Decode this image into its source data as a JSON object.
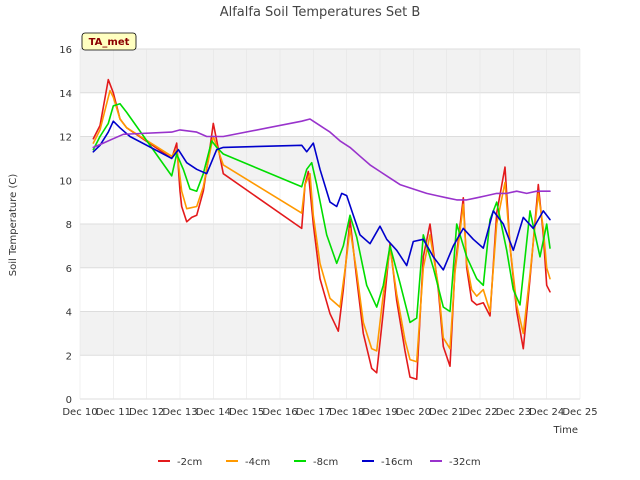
{
  "chart_data": {
    "type": "line",
    "title": "Alfalfa Soil Temperatures Set B",
    "xlabel": "Time",
    "ylabel": "Soil Temperature (C)",
    "station_label": "TA_met",
    "xlim": [
      10,
      25
    ],
    "ylim": [
      0,
      16
    ],
    "x_ticks": [
      10,
      11,
      12,
      13,
      14,
      15,
      16,
      17,
      18,
      19,
      20,
      21,
      22,
      23,
      24,
      25
    ],
    "x_tick_labels": [
      "Dec 10",
      "Dec 11",
      "Dec 12",
      "Dec 13",
      "Dec 14",
      "Dec 15",
      "Dec 16",
      "Dec 17",
      "Dec 18",
      "Dec 19",
      "Dec 20",
      "Dec 21",
      "Dec 22",
      "Dec 23",
      "Dec 24",
      "Dec 25"
    ],
    "y_ticks": [
      0,
      2,
      4,
      6,
      8,
      10,
      12,
      14,
      16
    ],
    "y_tick_labels": [
      "0",
      "2",
      "4",
      "6",
      "8",
      "10",
      "12",
      "14",
      "16"
    ],
    "grid": true,
    "legend_position": "bottom-center",
    "series": [
      {
        "name": "-2cm",
        "color": "#e31a1c",
        "x": [
          10.4,
          10.6,
          10.85,
          11.0,
          11.2,
          11.4,
          12.75,
          12.9,
          13.0,
          13.05,
          13.2,
          13.35,
          13.5,
          13.7,
          13.9,
          14.0,
          14.3,
          16.65,
          16.75,
          16.85,
          17.0,
          17.2,
          17.5,
          17.75,
          17.9,
          18.1,
          18.3,
          18.5,
          18.75,
          18.9,
          19.1,
          19.3,
          19.5,
          19.75,
          19.9,
          20.1,
          20.3,
          20.5,
          20.75,
          20.9,
          21.1,
          21.25,
          21.5,
          21.6,
          21.75,
          21.9,
          22.1,
          22.3,
          22.5,
          22.75,
          22.9,
          23.1,
          23.3,
          23.5,
          23.75,
          23.9,
          24.0,
          24.1
        ],
        "values": [
          11.9,
          12.5,
          14.6,
          14.0,
          12.8,
          12.4,
          11.0,
          11.7,
          9.5,
          8.8,
          8.1,
          8.3,
          8.4,
          9.5,
          11.5,
          12.6,
          10.3,
          7.8,
          9.8,
          10.4,
          8.0,
          5.5,
          3.9,
          3.1,
          5.0,
          8.2,
          5.5,
          3.0,
          1.4,
          1.2,
          4.0,
          7.1,
          4.5,
          2.2,
          1.0,
          0.9,
          6.5,
          8.0,
          5.0,
          2.4,
          1.5,
          6.0,
          9.2,
          6.0,
          4.5,
          4.3,
          4.4,
          3.8,
          8.5,
          10.6,
          7.0,
          4.0,
          2.3,
          5.5,
          9.8,
          7.5,
          5.2,
          4.9
        ]
      },
      {
        "name": "-4cm",
        "color": "#ff9900",
        "x": [
          10.4,
          10.6,
          10.9,
          11.0,
          11.2,
          11.4,
          12.75,
          12.9,
          13.05,
          13.2,
          13.5,
          13.7,
          13.9,
          14.0,
          14.3,
          16.65,
          16.75,
          16.9,
          17.0,
          17.2,
          17.5,
          17.8,
          18.0,
          18.1,
          18.3,
          18.5,
          18.75,
          18.9,
          19.1,
          19.3,
          19.5,
          19.75,
          19.9,
          20.1,
          20.3,
          20.5,
          20.75,
          20.9,
          21.1,
          21.25,
          21.5,
          21.6,
          21.75,
          21.9,
          22.1,
          22.3,
          22.5,
          22.75,
          22.9,
          23.1,
          23.3,
          23.5,
          23.75,
          23.9,
          24.0,
          24.1
        ],
        "values": [
          11.7,
          12.3,
          14.1,
          13.8,
          12.8,
          12.4,
          11.1,
          11.4,
          9.5,
          8.7,
          8.8,
          9.7,
          11.3,
          12.0,
          10.7,
          8.5,
          9.8,
          10.3,
          8.4,
          6.2,
          4.6,
          4.2,
          6.5,
          7.8,
          5.8,
          3.5,
          2.3,
          2.2,
          4.8,
          6.9,
          4.8,
          2.7,
          1.8,
          1.7,
          6.0,
          7.5,
          5.2,
          2.8,
          2.3,
          5.8,
          8.9,
          6.2,
          5.0,
          4.7,
          5.0,
          4.0,
          8.0,
          9.9,
          7.0,
          4.3,
          3.0,
          5.7,
          9.4,
          7.8,
          6.0,
          5.5
        ]
      },
      {
        "name": "-8cm",
        "color": "#00dd00",
        "x": [
          10.4,
          10.6,
          10.85,
          11.0,
          11.2,
          11.4,
          12.75,
          12.9,
          13.1,
          13.3,
          13.5,
          13.7,
          13.95,
          14.1,
          14.3,
          16.65,
          16.8,
          16.95,
          17.1,
          17.4,
          17.7,
          17.9,
          18.1,
          18.3,
          18.6,
          18.9,
          19.1,
          19.3,
          19.6,
          19.9,
          20.1,
          20.3,
          20.6,
          20.9,
          21.1,
          21.3,
          21.6,
          21.9,
          22.1,
          22.3,
          22.5,
          22.8,
          23.0,
          23.2,
          23.5,
          23.8,
          24.0,
          24.1
        ],
        "values": [
          11.4,
          12.0,
          12.6,
          13.4,
          13.5,
          13.1,
          10.2,
          11.2,
          10.5,
          9.6,
          9.5,
          10.3,
          11.8,
          11.5,
          11.2,
          9.7,
          10.5,
          10.8,
          9.8,
          7.5,
          6.2,
          7.0,
          8.4,
          7.4,
          5.2,
          4.2,
          5.2,
          7.0,
          5.3,
          3.5,
          3.7,
          7.5,
          6.0,
          4.2,
          4.0,
          8.0,
          6.5,
          5.5,
          5.2,
          8.2,
          9.0,
          6.8,
          5.0,
          4.3,
          8.6,
          6.5,
          8.0,
          6.9
        ]
      },
      {
        "name": "-16cm",
        "color": "#0000cc",
        "x": [
          10.4,
          10.6,
          10.85,
          11.0,
          11.2,
          11.5,
          12.75,
          12.95,
          13.2,
          13.5,
          13.8,
          14.1,
          14.3,
          16.65,
          16.8,
          17.0,
          17.2,
          17.5,
          17.7,
          17.85,
          18.0,
          18.2,
          18.4,
          18.7,
          19.0,
          19.2,
          19.5,
          19.8,
          20.0,
          20.3,
          20.6,
          20.9,
          21.2,
          21.5,
          21.8,
          22.1,
          22.4,
          22.7,
          23.0,
          23.3,
          23.6,
          23.9,
          24.1
        ],
        "values": [
          11.3,
          11.6,
          12.2,
          12.7,
          12.4,
          12.0,
          11.0,
          11.4,
          10.8,
          10.5,
          10.3,
          11.4,
          11.5,
          11.6,
          11.3,
          11.7,
          10.5,
          9.0,
          8.8,
          9.4,
          9.3,
          8.4,
          7.5,
          7.1,
          7.9,
          7.3,
          6.8,
          6.1,
          7.2,
          7.3,
          6.5,
          5.9,
          7.0,
          7.8,
          7.3,
          6.9,
          8.6,
          8.0,
          6.8,
          8.3,
          7.8,
          8.6,
          8.2
        ]
      },
      {
        "name": "-32cm",
        "color": "#9933cc",
        "x": [
          10.4,
          10.7,
          11.0,
          11.3,
          12.75,
          13.0,
          13.5,
          13.8,
          14.3,
          16.65,
          16.9,
          17.0,
          17.2,
          17.5,
          17.8,
          18.1,
          18.4,
          18.7,
          19.0,
          19.3,
          19.6,
          20.0,
          20.4,
          20.7,
          21.0,
          21.3,
          21.6,
          21.9,
          22.2,
          22.5,
          22.8,
          23.1,
          23.4,
          23.7,
          24.0,
          24.1
        ],
        "values": [
          11.5,
          11.7,
          11.9,
          12.1,
          12.2,
          12.3,
          12.2,
          12.0,
          12.0,
          12.7,
          12.8,
          12.7,
          12.5,
          12.2,
          11.8,
          11.5,
          11.1,
          10.7,
          10.4,
          10.1,
          9.8,
          9.6,
          9.4,
          9.3,
          9.2,
          9.1,
          9.1,
          9.2,
          9.3,
          9.4,
          9.4,
          9.5,
          9.4,
          9.5,
          9.5,
          9.5
        ]
      }
    ]
  }
}
